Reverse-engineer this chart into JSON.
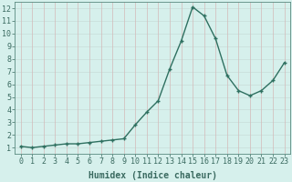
{
  "x": [
    0,
    1,
    2,
    3,
    4,
    5,
    6,
    7,
    8,
    9,
    10,
    11,
    12,
    13,
    14,
    15,
    16,
    17,
    18,
    19,
    20,
    21,
    22,
    23
  ],
  "y": [
    1.1,
    1.0,
    1.1,
    1.2,
    1.3,
    1.3,
    1.4,
    1.5,
    1.6,
    1.7,
    2.8,
    3.8,
    4.7,
    7.2,
    9.4,
    12.1,
    11.4,
    9.6,
    6.7,
    5.5,
    5.1,
    5.5,
    6.3,
    7.7
  ],
  "line_color": "#2e7060",
  "marker": "+",
  "marker_size": 3.5,
  "marker_linewidth": 1.0,
  "linewidth": 1.0,
  "background_color": "#d6f0ec",
  "grid_color_h": "#c8dcd8",
  "grid_color_v": "#d4b8b8",
  "xlabel": "Humidex (Indice chaleur)",
  "xlim": [
    -0.5,
    23.5
  ],
  "ylim": [
    0.5,
    12.5
  ],
  "xticks": [
    0,
    1,
    2,
    3,
    4,
    5,
    6,
    7,
    8,
    9,
    10,
    11,
    12,
    13,
    14,
    15,
    16,
    17,
    18,
    19,
    20,
    21,
    22,
    23
  ],
  "yticks": [
    1,
    2,
    3,
    4,
    5,
    6,
    7,
    8,
    9,
    10,
    11,
    12
  ],
  "xlabel_fontsize": 7,
  "tick_fontsize": 6,
  "spine_color": "#5a8a80",
  "tick_color": "#3a6a60"
}
